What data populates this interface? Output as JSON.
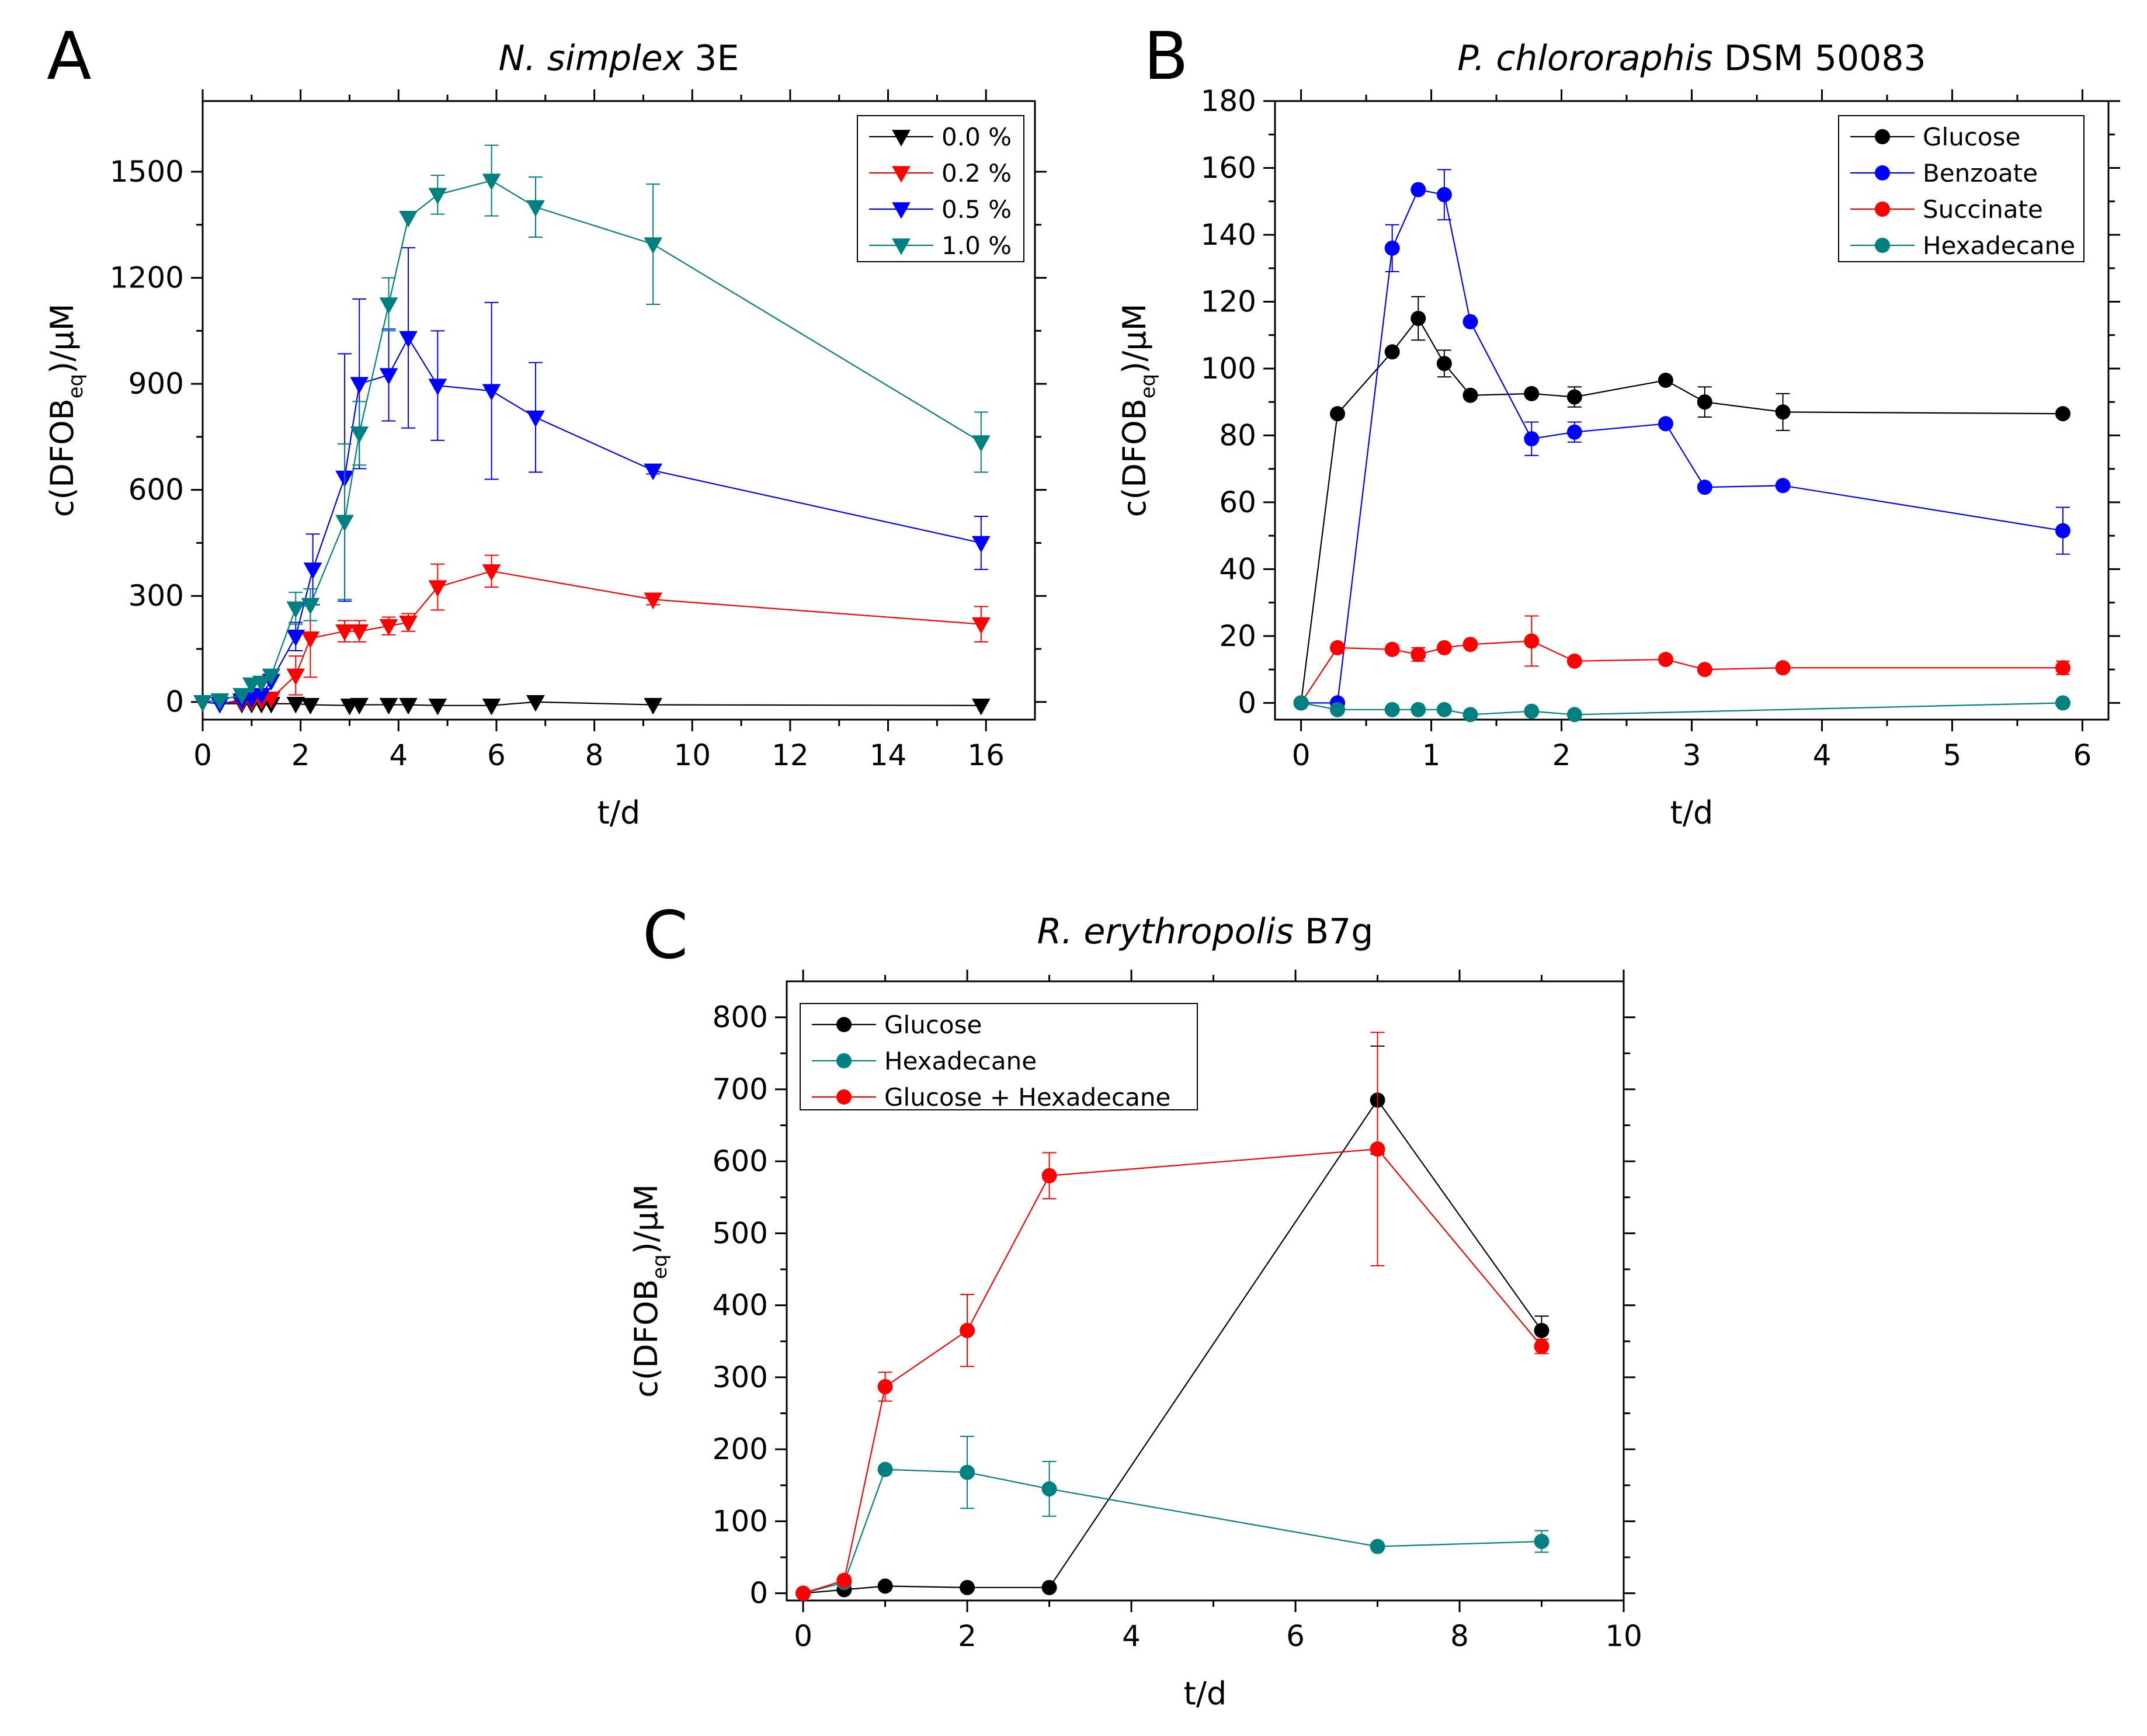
{
  "chart_data": [
    {
      "panel_letter": "A",
      "type": "line",
      "title_italic": "N. simplex",
      "title_rest": " 3E",
      "xlabel": "t/d",
      "ylabel": "c(DFOB",
      "ylabel_sub": "eq",
      "ylabel_end": ")/µM",
      "xlim": [
        0,
        17
      ],
      "ylim": [
        -50,
        1700
      ],
      "xticks": [
        0,
        2,
        4,
        6,
        8,
        10,
        12,
        14,
        16
      ],
      "yticks": [
        0,
        300,
        600,
        900,
        1200,
        1500
      ],
      "marker": "triangle-down",
      "legend_position": "top-right",
      "series": [
        {
          "name": "0.0 %",
          "color": "#000000",
          "x": [
            0,
            0.35,
            0.8,
            1.0,
            1.2,
            1.4,
            1.9,
            2.2,
            3.0,
            3.2,
            3.8,
            4.2,
            4.8,
            5.9,
            6.8,
            9.2,
            15.9
          ],
          "y": [
            0,
            -5,
            -5,
            -5,
            -5,
            -5,
            -5,
            -8,
            -10,
            -8,
            -8,
            -8,
            -10,
            -10,
            0,
            -8,
            -10
          ]
        },
        {
          "name": "0.2 %",
          "color": "#ff0000",
          "x": [
            0,
            0.35,
            0.8,
            1.0,
            1.2,
            1.4,
            1.9,
            2.2,
            2.9,
            3.2,
            3.8,
            4.2,
            4.8,
            5.9,
            9.2,
            15.9
          ],
          "y": [
            0,
            -5,
            0,
            2,
            5,
            10,
            75,
            180,
            200,
            200,
            215,
            225,
            325,
            370,
            290,
            220
          ],
          "err": [
            0,
            0,
            0,
            0,
            0,
            0,
            55,
            110,
            30,
            30,
            25,
            25,
            65,
            45,
            15,
            50
          ]
        },
        {
          "name": "0.5 %",
          "color": "#0000ff",
          "x": [
            0,
            0.35,
            0.8,
            1.0,
            1.2,
            1.4,
            1.9,
            2.25,
            2.9,
            3.2,
            3.8,
            4.2,
            4.8,
            5.9,
            6.8,
            9.2,
            15.9
          ],
          "y": [
            0,
            -5,
            5,
            10,
            20,
            60,
            185,
            375,
            635,
            900,
            925,
            1030,
            895,
            880,
            805,
            655,
            450
          ],
          "err": [
            0,
            0,
            0,
            0,
            0,
            0,
            40,
            100,
            350,
            240,
            130,
            255,
            155,
            250,
            155,
            10,
            75
          ]
        },
        {
          "name": "1.0 %",
          "color": "#008080",
          "x": [
            0,
            0.35,
            0.8,
            1.0,
            1.2,
            1.4,
            1.9,
            2.2,
            2.9,
            3.2,
            3.8,
            4.2,
            4.8,
            5.9,
            6.8,
            9.2,
            15.9
          ],
          "y": [
            0,
            5,
            20,
            50,
            55,
            75,
            265,
            275,
            510,
            760,
            1125,
            1370,
            1435,
            1475,
            1400,
            1295,
            735
          ],
          "err": [
            0,
            0,
            0,
            0,
            0,
            0,
            45,
            45,
            220,
            90,
            75,
            0,
            55,
            100,
            85,
            170,
            85
          ]
        }
      ]
    },
    {
      "panel_letter": "B",
      "type": "line",
      "title_italic": "P. chlororaphis",
      "title_rest": " DSM 50083",
      "xlabel": "t/d",
      "ylabel": "c(DFOB",
      "ylabel_sub": "eq",
      "ylabel_end": ")/µM",
      "xlim": [
        -0.2,
        6.2
      ],
      "ylim": [
        -5,
        180
      ],
      "xticks": [
        0,
        1,
        2,
        3,
        4,
        5,
        6
      ],
      "yticks": [
        0,
        20,
        40,
        60,
        80,
        100,
        120,
        140,
        160,
        180
      ],
      "marker": "circle",
      "legend_position": "top-right",
      "series": [
        {
          "name": "Glucose",
          "color": "#000000",
          "x": [
            0,
            0.28,
            0.7,
            0.9,
            1.1,
            1.3,
            1.77,
            2.1,
            2.8,
            3.1,
            3.7,
            5.85
          ],
          "y": [
            0,
            86.5,
            105,
            115,
            101.5,
            92,
            92.5,
            91.5,
            96.5,
            90,
            87,
            86.5
          ],
          "err": [
            0,
            0,
            0,
            6.5,
            4,
            0,
            0,
            3,
            0,
            4.5,
            5.5,
            0
          ]
        },
        {
          "name": "Benzoate",
          "color": "#0000ff",
          "x": [
            0,
            0.28,
            0.7,
            0.9,
            1.1,
            1.3,
            1.77,
            2.1,
            2.8,
            3.1,
            3.7,
            5.85
          ],
          "y": [
            0,
            0,
            136,
            153.5,
            152,
            114,
            79,
            81,
            83.5,
            64.5,
            65,
            51.5
          ],
          "err": [
            0,
            0,
            7,
            0,
            7.5,
            0,
            5,
            3,
            0,
            0,
            0,
            7
          ]
        },
        {
          "name": "Succinate",
          "color": "#ff0000",
          "x": [
            0,
            0.28,
            0.7,
            0.9,
            1.1,
            1.3,
            1.77,
            2.1,
            2.8,
            3.1,
            3.7,
            5.85
          ],
          "y": [
            0,
            16.5,
            16,
            14.5,
            16.5,
            17.5,
            18.5,
            12.5,
            13,
            10,
            10.5,
            10.5
          ],
          "err": [
            0,
            0,
            0,
            2,
            0,
            0,
            7.5,
            0,
            0,
            0,
            0,
            2
          ]
        },
        {
          "name": "Hexadecane",
          "color": "#008080",
          "x": [
            0,
            0.28,
            0.7,
            0.9,
            1.1,
            1.3,
            1.77,
            2.1,
            5.85
          ],
          "y": [
            0,
            -2,
            -2,
            -2,
            -2,
            -3.5,
            -2.5,
            -3.5,
            0
          ]
        }
      ]
    },
    {
      "panel_letter": "C",
      "type": "line",
      "title_italic": "R. erythropolis",
      "title_rest": " B7g",
      "xlabel": "t/d",
      "ylabel": "c(DFOB",
      "ylabel_sub": "eq",
      "ylabel_end": ")/µM",
      "xlim": [
        -0.2,
        10
      ],
      "ylim": [
        -10,
        850
      ],
      "xticks": [
        0,
        2,
        4,
        6,
        8,
        10
      ],
      "yticks": [
        0,
        100,
        200,
        300,
        400,
        500,
        600,
        700,
        800
      ],
      "marker": "circle",
      "legend_position": "top-left",
      "series": [
        {
          "name": "Glucose",
          "color": "#000000",
          "x": [
            0,
            0.5,
            1,
            2,
            3,
            7,
            9
          ],
          "y": [
            0,
            5,
            10,
            8,
            8,
            685,
            365
          ],
          "err": [
            0,
            0,
            0,
            0,
            0,
            75,
            20
          ]
        },
        {
          "name": "Hexadecane",
          "color": "#008080",
          "x": [
            0,
            0.5,
            1,
            2,
            3,
            7,
            9
          ],
          "y": [
            0,
            15,
            172,
            168,
            145,
            65,
            72
          ],
          "err": [
            0,
            0,
            0,
            50,
            38,
            0,
            15
          ]
        },
        {
          "name": "Glucose + Hexadecane",
          "color": "#ff0000",
          "x": [
            0,
            0.5,
            1,
            2,
            3,
            7,
            9
          ],
          "y": [
            0,
            18,
            287,
            365,
            580,
            617,
            343
          ],
          "err": [
            0,
            0,
            20,
            50,
            32,
            162,
            10
          ]
        }
      ]
    }
  ]
}
